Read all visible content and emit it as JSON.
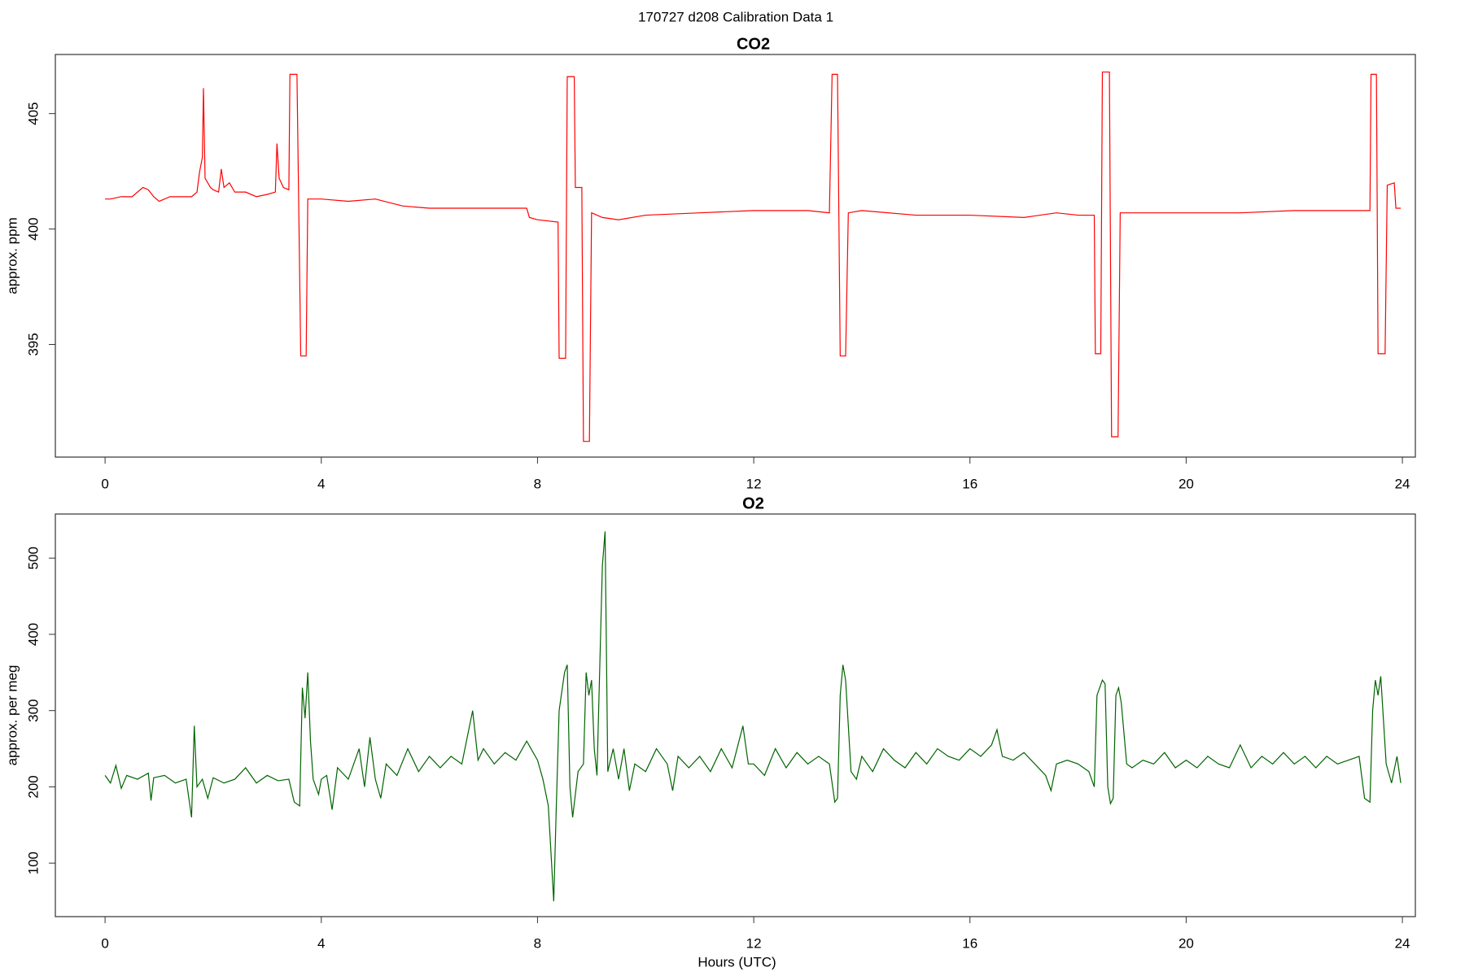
{
  "title": "170727   d208   Calibration Data 1",
  "chart_data": [
    {
      "type": "line",
      "title": "CO2",
      "y_label": "approx. ppm",
      "xlim": [
        -0.92,
        24.24
      ],
      "xticks": [
        0,
        4,
        8,
        12,
        16,
        20,
        24
      ],
      "ylim": [
        390.12,
        407.56
      ],
      "yticks": [
        395,
        400,
        405
      ],
      "color": "#ff0000",
      "x": [
        0,
        0.1,
        0.3,
        0.5,
        0.7,
        0.8,
        0.9,
        1.0,
        1.2,
        1.6,
        1.7,
        1.75,
        1.8,
        1.82,
        1.85,
        1.9,
        1.95,
        2.0,
        2.1,
        2.15,
        2.2,
        2.3,
        2.4,
        2.6,
        2.8,
        3.0,
        3.15,
        3.18,
        3.22,
        3.3,
        3.4,
        3.42,
        3.55,
        3.62,
        3.72,
        3.75,
        4.0,
        4.5,
        5.0,
        5.5,
        6.0,
        7.0,
        7.8,
        7.85,
        8.0,
        8.38,
        8.4,
        8.52,
        8.55,
        8.68,
        8.7,
        8.82,
        8.85,
        8.96,
        9.0,
        9.2,
        9.5,
        10,
        11,
        12,
        13,
        13.4,
        13.45,
        13.55,
        13.6,
        13.7,
        13.75,
        14,
        15,
        16,
        17,
        17.6,
        18,
        18.3,
        18.32,
        18.42,
        18.45,
        18.58,
        18.62,
        18.74,
        18.78,
        19,
        20,
        21,
        22,
        23.2,
        23.4,
        23.42,
        23.52,
        23.55,
        23.68,
        23.72,
        23.85,
        23.88,
        23.97
      ],
      "values": [
        401.3,
        401.3,
        401.4,
        401.4,
        401.8,
        401.7,
        401.4,
        401.2,
        401.4,
        401.4,
        401.6,
        402.5,
        403.1,
        406.1,
        402.2,
        402.0,
        401.8,
        401.7,
        401.6,
        402.6,
        401.8,
        402.0,
        401.6,
        401.6,
        401.4,
        401.5,
        401.6,
        403.7,
        402.2,
        401.8,
        401.7,
        406.7,
        406.7,
        394.5,
        394.5,
        401.3,
        401.3,
        401.2,
        401.3,
        401.0,
        400.9,
        400.9,
        400.9,
        400.5,
        400.4,
        400.3,
        394.4,
        394.4,
        406.6,
        406.6,
        401.8,
        401.8,
        390.8,
        390.8,
        400.7,
        400.5,
        400.4,
        400.6,
        400.7,
        400.8,
        400.8,
        400.7,
        406.7,
        406.7,
        394.5,
        394.5,
        400.7,
        400.8,
        400.6,
        400.6,
        400.5,
        400.7,
        400.6,
        400.6,
        394.6,
        394.6,
        406.8,
        406.8,
        391.0,
        391.0,
        400.7,
        400.7,
        400.7,
        400.7,
        400.8,
        400.8,
        400.8,
        406.7,
        406.7,
        394.6,
        394.6,
        401.9,
        402.0,
        400.9,
        400.9
      ]
    },
    {
      "type": "line",
      "title": "O2",
      "y_label": "approx. per meg",
      "x_label": "Hours (UTC)",
      "xlim": [
        -0.92,
        24.24
      ],
      "xticks": [
        0,
        4,
        8,
        12,
        16,
        20,
        24
      ],
      "ylim": [
        29.8,
        557.8
      ],
      "yticks": [
        100,
        200,
        300,
        400,
        500
      ],
      "color": "#006400",
      "x": [
        0,
        0.1,
        0.2,
        0.3,
        0.4,
        0.6,
        0.8,
        0.85,
        0.9,
        1.1,
        1.3,
        1.5,
        1.6,
        1.65,
        1.7,
        1.8,
        1.9,
        2.0,
        2.2,
        2.4,
        2.6,
        2.8,
        3.0,
        3.2,
        3.4,
        3.5,
        3.6,
        3.65,
        3.7,
        3.75,
        3.8,
        3.85,
        3.95,
        4.0,
        4.1,
        4.2,
        4.3,
        4.5,
        4.7,
        4.8,
        4.9,
        5.0,
        5.1,
        5.2,
        5.4,
        5.6,
        5.8,
        6.0,
        6.2,
        6.4,
        6.6,
        6.8,
        6.9,
        7.0,
        7.2,
        7.4,
        7.6,
        7.8,
        8.0,
        8.1,
        8.2,
        8.3,
        8.35,
        8.4,
        8.5,
        8.55,
        8.6,
        8.65,
        8.75,
        8.85,
        8.9,
        8.95,
        9.0,
        9.05,
        9.1,
        9.2,
        9.25,
        9.3,
        9.4,
        9.5,
        9.6,
        9.7,
        9.8,
        10,
        10.2,
        10.4,
        10.5,
        10.6,
        10.8,
        11,
        11.2,
        11.4,
        11.6,
        11.8,
        11.9,
        12,
        12.2,
        12.4,
        12.6,
        12.8,
        13,
        13.2,
        13.4,
        13.5,
        13.55,
        13.6,
        13.65,
        13.7,
        13.8,
        13.9,
        14,
        14.2,
        14.4,
        14.6,
        14.8,
        15,
        15.2,
        15.4,
        15.6,
        15.8,
        16,
        16.2,
        16.4,
        16.5,
        16.6,
        16.8,
        17,
        17.2,
        17.4,
        17.5,
        17.6,
        17.8,
        18,
        18.2,
        18.3,
        18.35,
        18.45,
        18.5,
        18.55,
        18.6,
        18.65,
        18.7,
        18.75,
        18.8,
        18.9,
        19,
        19.2,
        19.4,
        19.6,
        19.8,
        20,
        20.2,
        20.4,
        20.6,
        20.8,
        21,
        21.2,
        21.4,
        21.6,
        21.8,
        22,
        22.2,
        22.4,
        22.6,
        22.8,
        23.0,
        23.2,
        23.3,
        23.4,
        23.45,
        23.5,
        23.55,
        23.6,
        23.7,
        23.8,
        23.9,
        23.97
      ],
      "values": [
        215,
        205,
        228,
        198,
        215,
        210,
        218,
        182,
        212,
        215,
        205,
        210,
        160,
        280,
        200,
        210,
        185,
        212,
        205,
        210,
        225,
        205,
        215,
        208,
        210,
        180,
        175,
        330,
        290,
        350,
        260,
        210,
        190,
        210,
        215,
        170,
        225,
        210,
        250,
        200,
        265,
        210,
        185,
        230,
        215,
        250,
        220,
        240,
        225,
        240,
        230,
        300,
        235,
        250,
        230,
        245,
        235,
        260,
        235,
        210,
        175,
        50,
        180,
        300,
        350,
        360,
        200,
        160,
        220,
        230,
        350,
        320,
        340,
        250,
        215,
        490,
        535,
        220,
        250,
        210,
        250,
        195,
        230,
        220,
        250,
        230,
        195,
        240,
        225,
        240,
        220,
        250,
        225,
        280,
        230,
        230,
        215,
        250,
        225,
        245,
        230,
        240,
        230,
        180,
        185,
        320,
        360,
        340,
        220,
        210,
        240,
        220,
        250,
        235,
        225,
        245,
        230,
        250,
        240,
        235,
        250,
        240,
        255,
        275,
        240,
        235,
        245,
        230,
        215,
        195,
        230,
        235,
        230,
        220,
        200,
        320,
        340,
        335,
        200,
        178,
        185,
        320,
        330,
        310,
        230,
        225,
        235,
        230,
        245,
        225,
        235,
        225,
        240,
        230,
        225,
        255,
        225,
        240,
        230,
        245,
        230,
        240,
        225,
        240,
        230,
        235,
        240,
        185,
        180,
        300,
        340,
        320,
        345,
        230,
        205,
        240,
        205
      ]
    }
  ]
}
